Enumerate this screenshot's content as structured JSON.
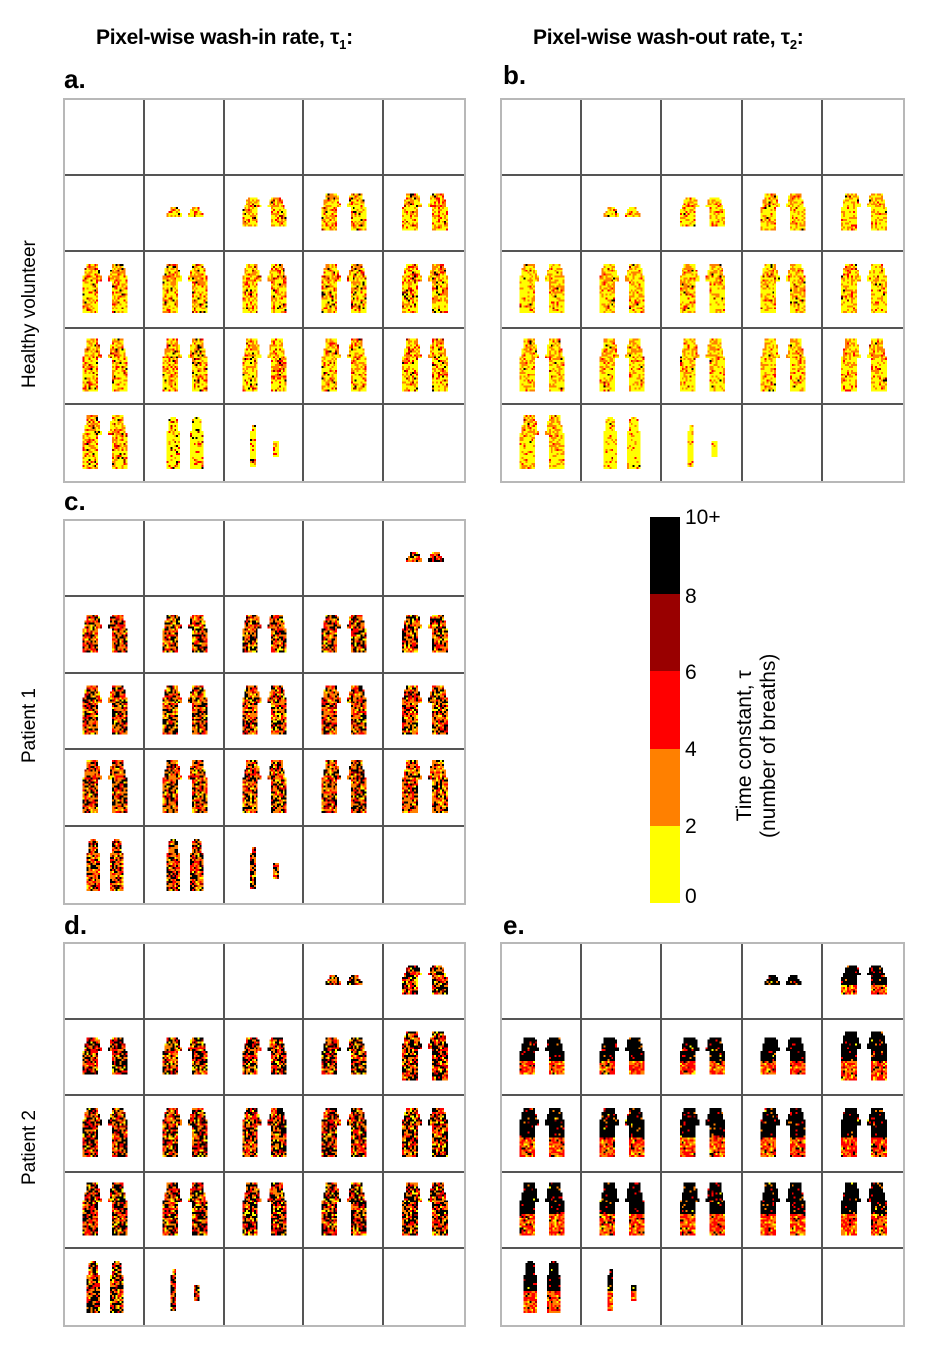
{
  "figure": {
    "column_titles": [
      {
        "text": "Pixel-wise wash-in rate, τ",
        "sub": "1",
        "suffix": ":"
      },
      {
        "text": "Pixel-wise wash-out rate, τ",
        "sub": "2",
        "suffix": ":"
      }
    ],
    "row_labels": [
      "Healthy volunteer",
      "Patient 1",
      "Patient 2"
    ],
    "panels": [
      {
        "id": "a",
        "label": "a.",
        "subject": "Healthy volunteer",
        "measure": "wash-in τ1",
        "slices": [
          0,
          0,
          0,
          0,
          0,
          0,
          1,
          2,
          3,
          3,
          4,
          4,
          4,
          4,
          4,
          5,
          5,
          5,
          5,
          5,
          5,
          6,
          7,
          0,
          0
        ],
        "mix": [
          0.35,
          0.45,
          0.12,
          0.03,
          0.05
        ],
        "bottom_shift": 0.5
      },
      {
        "id": "b",
        "label": "b.",
        "subject": "Healthy volunteer",
        "measure": "wash-out τ2",
        "slices": [
          0,
          0,
          0,
          0,
          0,
          0,
          1,
          2,
          3,
          3,
          4,
          4,
          4,
          4,
          4,
          5,
          5,
          5,
          5,
          5,
          5,
          6,
          7,
          0,
          0
        ],
        "mix": [
          0.4,
          0.5,
          0.07,
          0.01,
          0.02
        ],
        "bottom_shift": 0.6
      },
      {
        "id": "c",
        "label": "c.",
        "subject": "Patient 1",
        "measure": "wash-in τ1",
        "slices": [
          0,
          0,
          0,
          0,
          1,
          3,
          3,
          3,
          3,
          3,
          4,
          4,
          4,
          4,
          4,
          5,
          5,
          5,
          5,
          5,
          6,
          6,
          7,
          0,
          0
        ],
        "mix": [
          0.1,
          0.35,
          0.2,
          0.05,
          0.3
        ],
        "bottom_shift": 0.0
      },
      {
        "id": "d",
        "label": "d.",
        "subject": "Patient 2",
        "measure": "wash-in τ1",
        "slices": [
          0,
          0,
          0,
          1,
          2,
          3,
          3,
          3,
          3,
          4,
          4,
          4,
          4,
          4,
          4,
          5,
          5,
          5,
          5,
          5,
          6,
          7,
          0,
          0,
          0
        ],
        "mix": [
          0.08,
          0.25,
          0.22,
          0.05,
          0.4
        ],
        "bottom_shift": 0.0
      },
      {
        "id": "e",
        "label": "e.",
        "subject": "Patient 2",
        "measure": "wash-out τ2",
        "slices": [
          0,
          0,
          0,
          1,
          2,
          3,
          3,
          3,
          3,
          4,
          4,
          4,
          4,
          4,
          4,
          5,
          5,
          5,
          5,
          5,
          6,
          7,
          0,
          0,
          0
        ],
        "mix": [
          0.06,
          0.2,
          0.22,
          0.02,
          0.5
        ],
        "bottom_shift": 0.0,
        "black_top": true
      }
    ]
  },
  "colorbar": {
    "title_line1": "Time constant, τ",
    "title_line2": "(number of breaths)",
    "bins": [
      {
        "range": "8-10+",
        "color": "#000000"
      },
      {
        "range": "6-8",
        "color": "#990000"
      },
      {
        "range": "4-6",
        "color": "#ff0000"
      },
      {
        "range": "2-4",
        "color": "#ff8000"
      },
      {
        "range": "0-2",
        "color": "#ffff00"
      }
    ],
    "ticks": [
      "10+",
      "8",
      "6",
      "4",
      "2",
      "0"
    ]
  },
  "chart_data": {
    "type": "heatmap",
    "title": "Pixel-wise wash-in (τ1) and wash-out (τ2) time constant maps",
    "layout": "5x5 grid of coronal lung slices per panel",
    "panels": [
      "a: Healthy volunteer τ1",
      "b: Healthy volunteer τ2",
      "c: Patient 1 τ1",
      "d: Patient 2 τ1",
      "e: Patient 2 τ2"
    ],
    "colorscale_label": "Time constant, τ (number of breaths)",
    "color_range": [
      0,
      10
    ],
    "color_bins": [
      [
        0,
        2,
        "#ffff00"
      ],
      [
        2,
        4,
        "#ff8000"
      ],
      [
        4,
        6,
        "#ff0000"
      ],
      [
        6,
        8,
        "#990000"
      ],
      [
        8,
        10,
        "#000000"
      ]
    ],
    "tick_labels": [
      "0",
      "2",
      "4",
      "6",
      "8",
      "10+"
    ]
  }
}
